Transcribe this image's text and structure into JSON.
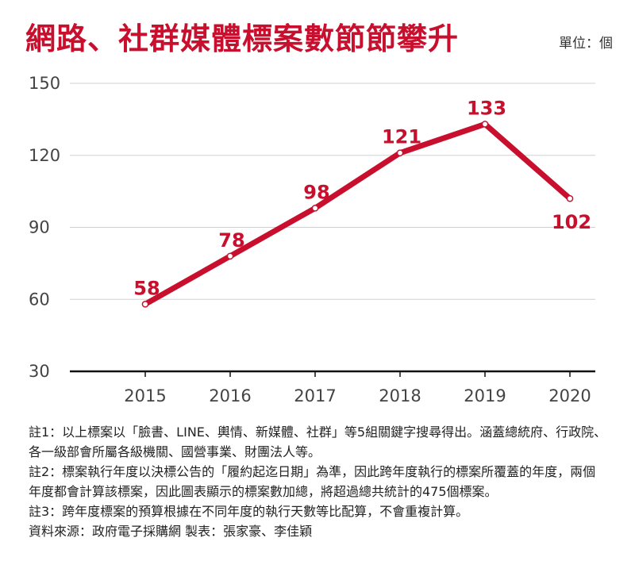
{
  "header": {
    "title": "網路、社群媒體標案數節節攀升",
    "unit": "單位：個"
  },
  "chart_data": {
    "type": "line",
    "x": [
      "2015",
      "2016",
      "2017",
      "2018",
      "2019",
      "2020"
    ],
    "series": [
      {
        "values": [
          58,
          78,
          98,
          121,
          133,
          102
        ]
      }
    ],
    "data_labels": [
      "58",
      "78",
      "98",
      "121",
      "133",
      "102"
    ],
    "y_ticks": [
      "30",
      "60",
      "90",
      "120",
      "150"
    ],
    "ylim": [
      30,
      150
    ],
    "grid": true,
    "colors": {
      "line": "#c8102e",
      "label": "#c8102e",
      "grid": "#d0d0d0",
      "axis": "#111111",
      "tick": "#444444"
    }
  },
  "notes": [
    "註1：以上標案以「臉書、LINE、輿情、新媒體、社群」等5組關鍵字搜尋得出。涵蓋總統府、行政院、各一級部會所屬各級機關、國營事業、財團法人等。",
    "註2：標案執行年度以決標公告的「履約起迄日期」為準，因此跨年度執行的標案所覆蓋的年度，兩個年度都會計算該標案，因此圖表顯示的標案數加總，將超過總共統計的475個標案。",
    "註3：跨年度標案的預算根據在不同年度的執行天數等比配算，不會重複計算。",
    "資料來源：政府電子採購網  製表：張家豪、李佳穎"
  ]
}
